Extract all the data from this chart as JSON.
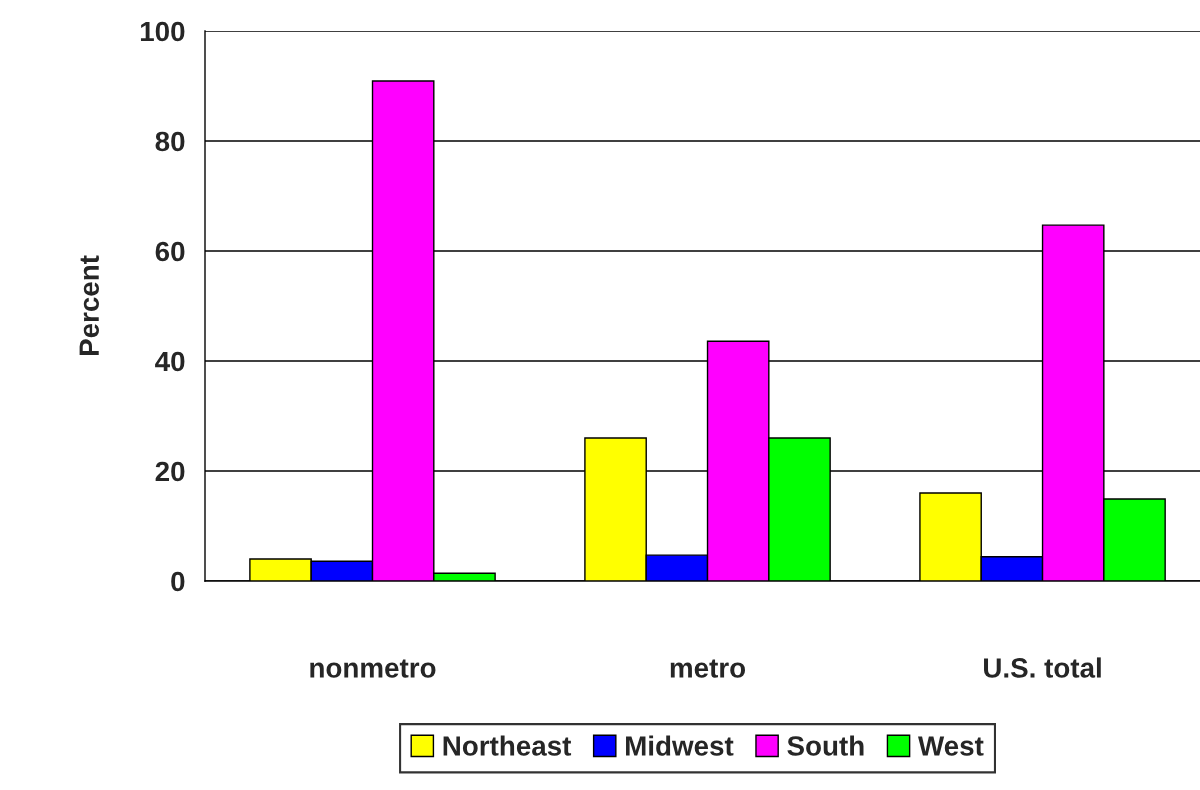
{
  "chart_data": {
    "type": "bar",
    "ylabel": "Percent",
    "categories": [
      "nonmetro",
      "metro",
      "U.S. total"
    ],
    "series": [
      {
        "name": "Northeast",
        "color": "#ffff00",
        "values": [
          4.0,
          26.0,
          16.0
        ]
      },
      {
        "name": "Midwest",
        "color": "#0000ff",
        "values": [
          3.6,
          4.7,
          4.4
        ]
      },
      {
        "name": "South",
        "color": "#ff00ff",
        "values": [
          90.9,
          43.6,
          64.7
        ]
      },
      {
        "name": "West",
        "color": "#00ff00",
        "values": [
          1.4,
          26.0,
          14.9
        ]
      }
    ],
    "ylim": [
      0,
      100
    ],
    "yticks": [
      0,
      20,
      40,
      60,
      80,
      100
    ],
    "grid": "y",
    "legend": "bottom"
  }
}
